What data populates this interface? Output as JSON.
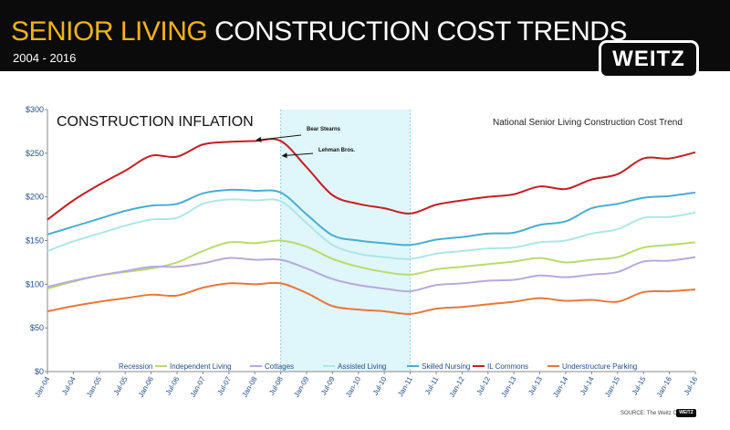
{
  "header": {
    "title_accent": "SENIOR LIVING",
    "title_rest": "CONSTRUCTION COST TRENDS",
    "subtitle": "2004 - 2016",
    "logo_text": "WEITZ"
  },
  "source_text": "SOURCE: The Weitz Co.",
  "footer_logo_text": "WEITZ",
  "chart_data": {
    "type": "line",
    "title": "CONSTRUCTION INFLATION",
    "subtitle": "National Senior Living Construction Cost Trend",
    "xlabel": "",
    "ylabel": "",
    "ylim": [
      0,
      300
    ],
    "yticks": [
      0,
      50,
      100,
      150,
      200,
      250,
      300
    ],
    "ytick_labels": [
      "$0",
      "$50",
      "$100",
      "$150",
      "$200",
      "$250",
      "$300"
    ],
    "x": [
      "Jan-04",
      "Jul-04",
      "Jan-05",
      "Jul-05",
      "Jan-06",
      "Jul-06",
      "Jan-07",
      "Jul-07",
      "Jan-08",
      "Jul-08",
      "Jan-09",
      "Jul-09",
      "Jan-10",
      "Jul-10",
      "Jan-11",
      "Jul-11",
      "Jan-12",
      "Jul-12",
      "Jan-13",
      "Jul-13",
      "Jan-14",
      "Jul-14",
      "Jan-15",
      "Jul-15",
      "Jan-16",
      "Jul-16"
    ],
    "grid": false,
    "legend_position": "bottom",
    "recession": {
      "name": "Recession",
      "start": "Jul-08",
      "end": "Jan-11",
      "color": "#dff6fa"
    },
    "series": [
      {
        "name": "Independent Living",
        "color": "#b8dc6c",
        "values": [
          95,
          103,
          110,
          114,
          118,
          125,
          138,
          148,
          147,
          150,
          143,
          129,
          120,
          114,
          111,
          117,
          120,
          123,
          126,
          130,
          125,
          128,
          131,
          142,
          145,
          148
        ]
      },
      {
        "name": "Cottages",
        "color": "#b7a9dc",
        "values": [
          97,
          104,
          110,
          115,
          120,
          120,
          124,
          130,
          128,
          128,
          118,
          106,
          99,
          95,
          92,
          99,
          101,
          104,
          105,
          110,
          108,
          111,
          114,
          126,
          127,
          131
        ]
      },
      {
        "name": "Assisted Living",
        "color": "#aee6e6",
        "values": [
          138,
          149,
          158,
          167,
          174,
          176,
          192,
          197,
          196,
          195,
          170,
          145,
          135,
          131,
          129,
          135,
          138,
          141,
          142,
          148,
          150,
          158,
          163,
          176,
          177,
          182
        ]
      },
      {
        "name": "Skilled Nursing",
        "color": "#48aed1",
        "values": [
          157,
          166,
          175,
          184,
          190,
          192,
          204,
          208,
          207,
          205,
          180,
          156,
          150,
          147,
          145,
          151,
          154,
          158,
          159,
          168,
          172,
          187,
          192,
          199,
          201,
          205
        ]
      },
      {
        "name": "IL Commons",
        "color": "#c41e24",
        "values": [
          174,
          196,
          214,
          230,
          247,
          246,
          260,
          263,
          264,
          264,
          234,
          202,
          192,
          187,
          181,
          191,
          196,
          200,
          203,
          212,
          209,
          220,
          226,
          244,
          244,
          251
        ]
      },
      {
        "name": "Understructure Parking",
        "color": "#e8773b",
        "values": [
          69,
          75,
          80,
          84,
          88,
          87,
          96,
          101,
          100,
          101,
          90,
          75,
          71,
          69,
          66,
          72,
          74,
          77,
          80,
          84,
          81,
          82,
          80,
          91,
          92,
          94
        ]
      }
    ],
    "annotations": [
      {
        "text": "Bear Stearns",
        "x": "Jan-08",
        "y": 264
      },
      {
        "text": "Lehman Bros.",
        "x": "Jul-08",
        "y": 246
      }
    ]
  }
}
